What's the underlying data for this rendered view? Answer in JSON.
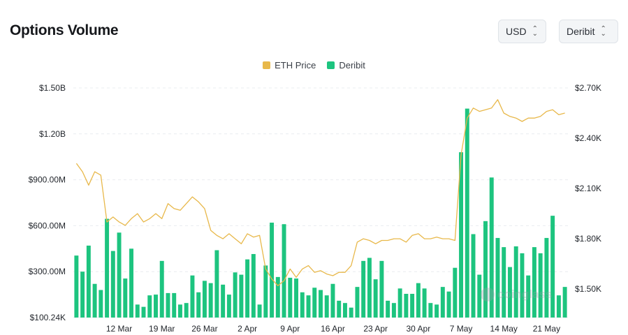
{
  "header": {
    "title": "Options Volume",
    "currency_select": "USD",
    "exchange_select": "Deribit"
  },
  "legend": [
    {
      "label": "ETH Price",
      "color": "#e8b84a",
      "icon": "legend-swatch-eth-price"
    },
    {
      "label": "Deribit",
      "color": "#1dc47f",
      "icon": "legend-swatch-deribit"
    }
  ],
  "watermark": "coinglass",
  "chart_data": {
    "type": "bar",
    "x_tick_labels": [
      "12 Mar",
      "19 Mar",
      "26 Mar",
      "2 Apr",
      "9 Apr",
      "16 Apr",
      "23 Apr",
      "30 Apr",
      "7 May",
      "14 May",
      "21 May"
    ],
    "left_axis": {
      "tick_labels": [
        "$100.24K",
        "$300.00M",
        "$600.00M",
        "$900.00M",
        "$1.20B",
        "$1.50B"
      ],
      "ylim": [
        0,
        1500
      ]
    },
    "right_axis": {
      "tick_labels": [
        "$1.50K",
        "$1.80K",
        "$2.10K",
        "$2.40K",
        "$2.70K"
      ],
      "ylim": [
        1330,
        2700
      ]
    },
    "grid": true,
    "legend_position": "top-center",
    "series": [
      {
        "name": "Deribit",
        "kind": "bar",
        "axis": "left",
        "unit": "USD millions",
        "values": [
          405,
          300,
          470,
          220,
          180,
          645,
          435,
          555,
          255,
          450,
          85,
          70,
          145,
          150,
          370,
          160,
          160,
          85,
          95,
          275,
          165,
          240,
          225,
          440,
          215,
          150,
          295,
          280,
          380,
          415,
          85,
          340,
          620,
          265,
          610,
          260,
          255,
          165,
          145,
          195,
          180,
          145,
          220,
          110,
          95,
          65,
          200,
          370,
          390,
          250,
          370,
          110,
          95,
          190,
          155,
          155,
          225,
          190,
          95,
          85,
          200,
          170,
          325,
          1080,
          1365,
          545,
          280,
          630,
          915,
          520,
          460,
          330,
          465,
          420,
          275,
          460,
          420,
          520,
          665,
          145,
          200
        ]
      },
      {
        "name": "ETH Price",
        "kind": "line",
        "axis": "right",
        "unit": "USD",
        "values": [
          2250,
          2200,
          2120,
          2200,
          2180,
          1900,
          1930,
          1900,
          1880,
          1920,
          1950,
          1900,
          1920,
          1950,
          1920,
          2010,
          1980,
          1970,
          2010,
          2050,
          2020,
          1980,
          1850,
          1820,
          1800,
          1830,
          1800,
          1770,
          1830,
          1810,
          1820,
          1620,
          1560,
          1520,
          1550,
          1620,
          1570,
          1620,
          1640,
          1600,
          1610,
          1590,
          1580,
          1600,
          1600,
          1640,
          1780,
          1800,
          1790,
          1770,
          1790,
          1790,
          1800,
          1800,
          1780,
          1820,
          1830,
          1800,
          1800,
          1810,
          1800,
          1800,
          1790,
          2300,
          2520,
          2580,
          2560,
          2570,
          2580,
          2630,
          2550,
          2530,
          2520,
          2500,
          2520,
          2520,
          2530,
          2560,
          2570,
          2540,
          2550
        ]
      }
    ]
  }
}
